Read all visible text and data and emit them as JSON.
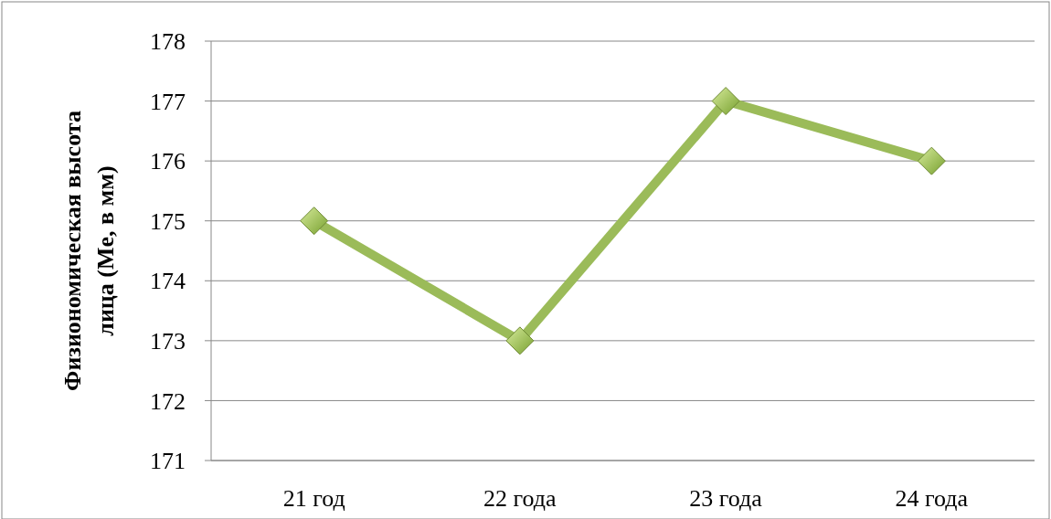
{
  "chart_data": {
    "type": "line",
    "ylabel": "Физиономическая высота лица (Me, в мм)",
    "categories": [
      "21 год",
      "22 года",
      "23 года",
      "24 года"
    ],
    "series": [
      {
        "color": "#9bbb59",
        "values": [
          175,
          173,
          177,
          176
        ]
      }
    ],
    "ylim": [
      171,
      178
    ],
    "yticks": [
      171,
      172,
      173,
      174,
      175,
      176,
      177,
      178
    ],
    "grid": "y",
    "marker": "diamond",
    "line_style": "solid"
  }
}
